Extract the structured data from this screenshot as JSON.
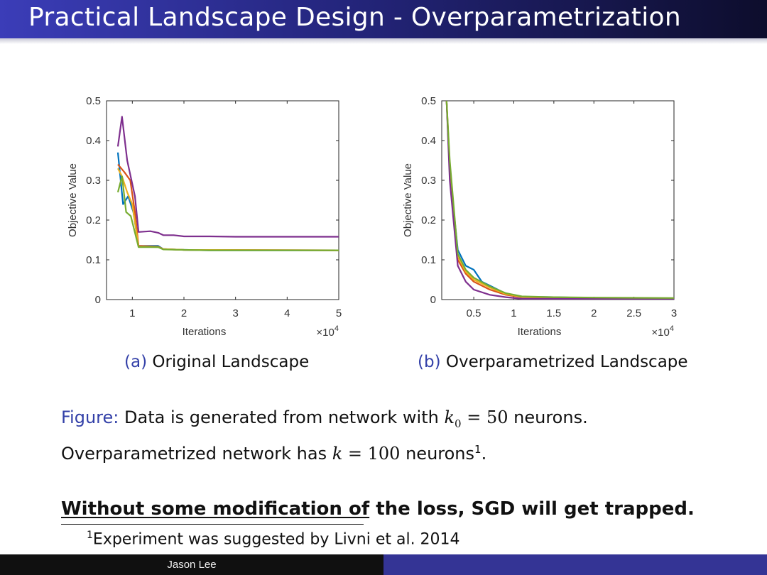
{
  "slide": {
    "title": "Practical Landscape Design - Overparametrization"
  },
  "captions": {
    "a_tag": "(a)",
    "a_text": "Original Landscape",
    "b_tag": "(b)",
    "b_text": "Overparametrized Landscape"
  },
  "figure_caption": {
    "label": "Figure:",
    "line1_pre": "Data is generated from network with",
    "line1_var": "k",
    "line1_sub": "0",
    "line1_eq": "= 50",
    "line1_post": "neurons.",
    "line2_pre": "Overparametrized network has",
    "line2_var": "k",
    "line2_eq": "= 100",
    "line2_post": "neurons",
    "line2_sup": "1",
    "line2_end": "."
  },
  "main_statement": {
    "underlined": "Without some modification of",
    "rest": "the loss, SGD will get trapped."
  },
  "footnote": {
    "mark": "1",
    "text": "Experiment was suggested by Livni et al. 2014"
  },
  "footer": {
    "author": "Jason Lee"
  },
  "colors": {
    "title_bar": "#3b3db8",
    "accent_blue": "#3340a8",
    "series": [
      "#0072bd",
      "#d95319",
      "#edb120",
      "#7e2f8e",
      "#77ac30"
    ]
  },
  "chart_data": [
    {
      "type": "line",
      "xlabel": "Iterations",
      "ylabel": "Objective Value",
      "x_multiplier": "×10^4",
      "xlim": [
        0.5,
        5
      ],
      "ylim": [
        0,
        0.5
      ],
      "xticks": [
        "1",
        "2",
        "3",
        "4",
        "5"
      ],
      "yticks": [
        "0",
        "0.1",
        "0.2",
        "0.3",
        "0.4",
        "0.5"
      ],
      "grid": false,
      "legend": "none",
      "series": [
        {
          "color": "#0072bd",
          "points": [
            [
              0.72,
              0.37
            ],
            [
              0.82,
              0.24
            ],
            [
              0.92,
              0.26
            ],
            [
              1.02,
              0.22
            ],
            [
              1.12,
              0.135
            ],
            [
              1.5,
              0.135
            ],
            [
              1.6,
              0.127
            ],
            [
              2.0,
              0.125
            ],
            [
              2.5,
              0.124
            ],
            [
              5,
              0.124
            ]
          ]
        },
        {
          "color": "#d95319",
          "points": [
            [
              0.72,
              0.34
            ],
            [
              0.85,
              0.32
            ],
            [
              0.96,
              0.3
            ],
            [
              1.05,
              0.22
            ],
            [
              1.12,
              0.135
            ],
            [
              1.5,
              0.133
            ],
            [
              1.6,
              0.127
            ],
            [
              2.0,
              0.125
            ],
            [
              5,
              0.124
            ]
          ]
        },
        {
          "color": "#edb120",
          "points": [
            [
              0.72,
              0.33
            ],
            [
              0.8,
              0.31
            ],
            [
              0.9,
              0.27
            ],
            [
              1.0,
              0.24
            ],
            [
              1.12,
              0.133
            ],
            [
              1.5,
              0.132
            ],
            [
              1.6,
              0.127
            ],
            [
              2.0,
              0.125
            ],
            [
              5,
              0.124
            ]
          ]
        },
        {
          "color": "#7e2f8e",
          "points": [
            [
              0.72,
              0.385
            ],
            [
              0.8,
              0.46
            ],
            [
              0.9,
              0.35
            ],
            [
              1.05,
              0.26
            ],
            [
              1.12,
              0.17
            ],
            [
              1.35,
              0.172
            ],
            [
              1.5,
              0.168
            ],
            [
              1.6,
              0.162
            ],
            [
              1.8,
              0.162
            ],
            [
              2.0,
              0.159
            ],
            [
              2.5,
              0.159
            ],
            [
              3,
              0.158
            ],
            [
              5,
              0.158
            ]
          ]
        },
        {
          "color": "#77ac30",
          "points": [
            [
              0.72,
              0.27
            ],
            [
              0.8,
              0.31
            ],
            [
              0.88,
              0.22
            ],
            [
              0.97,
              0.21
            ],
            [
              1.12,
              0.132
            ],
            [
              1.5,
              0.132
            ],
            [
              1.6,
              0.126
            ],
            [
              2.0,
              0.125
            ],
            [
              2.5,
              0.124
            ],
            [
              5,
              0.124
            ]
          ]
        }
      ]
    },
    {
      "type": "line",
      "xlabel": "Iterations",
      "ylabel": "Objective Value",
      "x_multiplier": "×10^4",
      "xlim": [
        0.1,
        3
      ],
      "ylim": [
        0,
        0.5
      ],
      "xticks": [
        "0.5",
        "1",
        "1.5",
        "2",
        "2.5",
        "3"
      ],
      "yticks": [
        "0",
        "0.1",
        "0.2",
        "0.3",
        "0.4",
        "0.5"
      ],
      "grid": false,
      "legend": "none",
      "series": [
        {
          "color": "#0072bd",
          "points": [
            [
              0.16,
              0.5
            ],
            [
              0.2,
              0.32
            ],
            [
              0.3,
              0.125
            ],
            [
              0.4,
              0.085
            ],
            [
              0.5,
              0.075
            ],
            [
              0.6,
              0.045
            ],
            [
              0.7,
              0.035
            ],
            [
              0.9,
              0.015
            ],
            [
              1.1,
              0.007
            ],
            [
              1.5,
              0.006
            ],
            [
              2,
              0.004
            ],
            [
              3,
              0.003
            ]
          ]
        },
        {
          "color": "#d95319",
          "points": [
            [
              0.16,
              0.5
            ],
            [
              0.2,
              0.33
            ],
            [
              0.3,
              0.1
            ],
            [
              0.4,
              0.065
            ],
            [
              0.5,
              0.045
            ],
            [
              0.7,
              0.025
            ],
            [
              0.9,
              0.012
            ],
            [
              1.1,
              0.006
            ],
            [
              1.5,
              0.005
            ],
            [
              2,
              0.004
            ],
            [
              3,
              0.003
            ]
          ]
        },
        {
          "color": "#edb120",
          "points": [
            [
              0.16,
              0.5
            ],
            [
              0.2,
              0.34
            ],
            [
              0.3,
              0.11
            ],
            [
              0.4,
              0.07
            ],
            [
              0.5,
              0.05
            ],
            [
              0.7,
              0.03
            ],
            [
              0.9,
              0.014
            ],
            [
              1.1,
              0.007
            ],
            [
              1.5,
              0.005
            ],
            [
              2,
              0.004
            ],
            [
              3,
              0.003
            ]
          ]
        },
        {
          "color": "#7e2f8e",
          "points": [
            [
              0.16,
              0.5
            ],
            [
              0.2,
              0.3
            ],
            [
              0.3,
              0.085
            ],
            [
              0.4,
              0.045
            ],
            [
              0.5,
              0.025
            ],
            [
              0.7,
              0.012
            ],
            [
              0.9,
              0.006
            ],
            [
              1.1,
              0.002
            ],
            [
              1.5,
              0.002
            ],
            [
              2,
              0.002
            ],
            [
              3,
              0.002
            ]
          ]
        },
        {
          "color": "#77ac30",
          "points": [
            [
              0.16,
              0.5
            ],
            [
              0.2,
              0.35
            ],
            [
              0.3,
              0.115
            ],
            [
              0.4,
              0.075
            ],
            [
              0.5,
              0.055
            ],
            [
              0.7,
              0.033
            ],
            [
              0.9,
              0.016
            ],
            [
              1.1,
              0.008
            ],
            [
              1.5,
              0.006
            ],
            [
              2,
              0.005
            ],
            [
              3,
              0.004
            ]
          ]
        }
      ]
    }
  ]
}
